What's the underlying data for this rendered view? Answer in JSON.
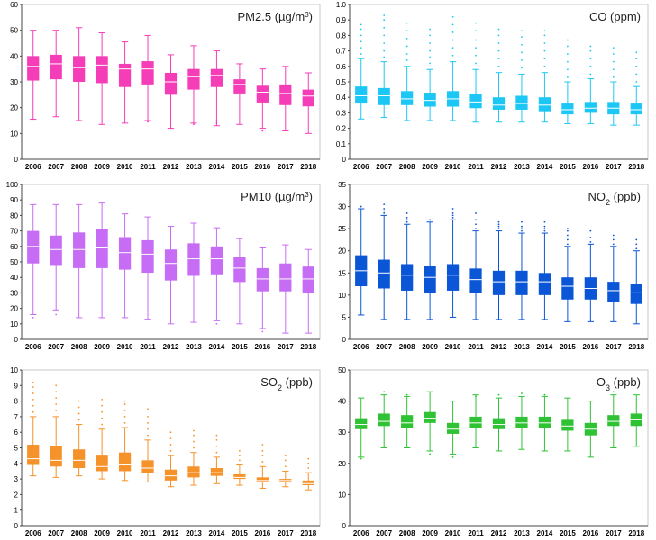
{
  "chart_data": [
    {
      "type": "boxplot",
      "title": "PM2.5 (µg/m³)",
      "title_main": "PM2.5 (µg/m",
      "title_sup": "3",
      "title_end": ")",
      "color": "#f53db8",
      "categories": [
        "2006",
        "2007",
        "2008",
        "2009",
        "2010",
        "2011",
        "2012",
        "2013",
        "2014",
        "2015",
        "2016",
        "2017",
        "2018"
      ],
      "ylim": [
        0,
        60
      ],
      "yticks": [
        "0",
        "10",
        "20",
        "30",
        "40",
        "50",
        "60"
      ],
      "boxes": [
        {
          "low": 15.5,
          "q1": 30.5,
          "median": 36,
          "q3": 40,
          "high": 50,
          "outliers": []
        },
        {
          "low": 16.5,
          "q1": 31,
          "median": 37,
          "q3": 40.5,
          "high": 50,
          "outliers": []
        },
        {
          "low": 15,
          "q1": 30,
          "median": 35.5,
          "q3": 40,
          "high": 51,
          "outliers": []
        },
        {
          "low": 13.5,
          "q1": 29.5,
          "median": 36.5,
          "q3": 40,
          "high": 49,
          "outliers": []
        },
        {
          "low": 14,
          "q1": 28,
          "median": 35,
          "q3": 37,
          "high": 45.5,
          "outliers": []
        },
        {
          "low": 15,
          "q1": 29,
          "median": 35,
          "q3": 38,
          "high": 48,
          "outliers": [
            14.5
          ]
        },
        {
          "low": 12,
          "q1": 25,
          "median": 30,
          "q3": 33.5,
          "high": 40.5,
          "outliers": []
        },
        {
          "low": 14,
          "q1": 27,
          "median": 32,
          "q3": 35,
          "high": 44,
          "outliers": [
            13.5
          ]
        },
        {
          "low": 13,
          "q1": 28,
          "median": 32.5,
          "q3": 35,
          "high": 42,
          "outliers": [
            15,
            14
          ]
        },
        {
          "low": 13.5,
          "q1": 25.5,
          "median": 29,
          "q3": 31,
          "high": 37,
          "outliers": []
        },
        {
          "low": 12,
          "q1": 22,
          "median": 26,
          "q3": 28.5,
          "high": 35,
          "outliers": [
            11
          ]
        },
        {
          "low": 11,
          "q1": 21,
          "median": 25.5,
          "q3": 29,
          "high": 36,
          "outliers": []
        },
        {
          "low": 10,
          "q1": 20.5,
          "median": 24.5,
          "q3": 27,
          "high": 33.5,
          "outliers": []
        }
      ]
    },
    {
      "type": "boxplot",
      "title": "CO (ppm)",
      "title_main": "CO (ppm)",
      "title_sup": "",
      "title_end": "",
      "color": "#1cc7f5",
      "categories": [
        "2006",
        "2007",
        "2008",
        "2009",
        "2010",
        "2011",
        "2012",
        "2013",
        "2014",
        "2015",
        "2016",
        "2017",
        "2018"
      ],
      "ylim": [
        0,
        1
      ],
      "yticks": [
        "0",
        "0.1",
        "0.2",
        "0.3",
        "0.4",
        "0.5",
        "0.6",
        "0.7",
        "0.8",
        "0.9",
        "1.0"
      ],
      "boxes": [
        {
          "low": 0.26,
          "q1": 0.36,
          "median": 0.41,
          "q3": 0.47,
          "high": 0.65,
          "outliers": [
            0.68,
            0.72,
            0.76,
            0.8,
            0.84,
            0.87
          ]
        },
        {
          "low": 0.27,
          "q1": 0.35,
          "median": 0.41,
          "q3": 0.46,
          "high": 0.63,
          "outliers": [
            0.66,
            0.7,
            0.75,
            0.8,
            0.85,
            0.9,
            0.93
          ]
        },
        {
          "low": 0.25,
          "q1": 0.35,
          "median": 0.39,
          "q3": 0.44,
          "high": 0.6,
          "outliers": [
            0.64,
            0.68,
            0.73,
            0.78,
            0.83,
            0.88
          ]
        },
        {
          "low": 0.25,
          "q1": 0.34,
          "median": 0.38,
          "q3": 0.43,
          "high": 0.58,
          "outliers": [
            0.62,
            0.66,
            0.7,
            0.75,
            0.8,
            0.84
          ]
        },
        {
          "low": 0.25,
          "q1": 0.34,
          "median": 0.39,
          "q3": 0.44,
          "high": 0.63,
          "outliers": [
            0.67,
            0.72,
            0.77,
            0.82,
            0.87,
            0.92
          ]
        },
        {
          "low": 0.24,
          "q1": 0.33,
          "median": 0.37,
          "q3": 0.42,
          "high": 0.58,
          "outliers": [
            0.62,
            0.67,
            0.72,
            0.77,
            0.83,
            0.88
          ]
        },
        {
          "low": 0.24,
          "q1": 0.32,
          "median": 0.35,
          "q3": 0.4,
          "high": 0.56,
          "outliers": [
            0.6,
            0.65,
            0.7,
            0.75,
            0.8,
            0.84
          ]
        },
        {
          "low": 0.24,
          "q1": 0.32,
          "median": 0.36,
          "q3": 0.41,
          "high": 0.55,
          "outliers": [
            0.59,
            0.64,
            0.69,
            0.74,
            0.79,
            0.83
          ]
        },
        {
          "low": 0.24,
          "q1": 0.31,
          "median": 0.35,
          "q3": 0.4,
          "high": 0.56,
          "outliers": [
            0.6,
            0.65,
            0.7,
            0.75,
            0.8,
            0.83
          ]
        },
        {
          "low": 0.23,
          "q1": 0.29,
          "median": 0.32,
          "q3": 0.36,
          "high": 0.5,
          "outliers": [
            0.53,
            0.58,
            0.63,
            0.68,
            0.73,
            0.77
          ]
        },
        {
          "low": 0.23,
          "q1": 0.3,
          "median": 0.33,
          "q3": 0.37,
          "high": 0.52,
          "outliers": [
            0.55,
            0.6,
            0.65,
            0.7,
            0.73
          ]
        },
        {
          "low": 0.22,
          "q1": 0.29,
          "median": 0.33,
          "q3": 0.37,
          "high": 0.5,
          "outliers": [
            0.53,
            0.58,
            0.63,
            0.68,
            0.72
          ]
        },
        {
          "low": 0.22,
          "q1": 0.29,
          "median": 0.32,
          "q3": 0.36,
          "high": 0.47,
          "outliers": [
            0.5,
            0.55,
            0.6,
            0.65,
            0.69
          ]
        }
      ]
    },
    {
      "type": "boxplot",
      "title": "PM10 (µg/m³)",
      "title_main": "PM10 (µg/m",
      "title_sup": "3",
      "title_end": ")",
      "color": "#c66cf5",
      "categories": [
        "2006",
        "2007",
        "2008",
        "2009",
        "2010",
        "2011",
        "2012",
        "2013",
        "2014",
        "2015",
        "2016",
        "2017",
        "2018"
      ],
      "ylim": [
        0,
        100
      ],
      "yticks": [
        "0",
        "10",
        "20",
        "30",
        "40",
        "50",
        "60",
        "70",
        "80",
        "90",
        "100"
      ],
      "boxes": [
        {
          "low": 16,
          "q1": 49,
          "median": 60,
          "q3": 70,
          "high": 87,
          "outliers": [
            14
          ]
        },
        {
          "low": 19,
          "q1": 48,
          "median": 58,
          "q3": 67,
          "high": 87,
          "outliers": [
            16
          ]
        },
        {
          "low": 14,
          "q1": 46,
          "median": 58,
          "q3": 69,
          "high": 87,
          "outliers": []
        },
        {
          "low": 14,
          "q1": 46,
          "median": 59,
          "q3": 71,
          "high": 88,
          "outliers": []
        },
        {
          "low": 14,
          "q1": 45,
          "median": 56,
          "q3": 66,
          "high": 81,
          "outliers": []
        },
        {
          "low": 13,
          "q1": 43,
          "median": 55,
          "q3": 64,
          "high": 79,
          "outliers": []
        },
        {
          "low": 10,
          "q1": 38,
          "median": 49,
          "q3": 58,
          "high": 73,
          "outliers": []
        },
        {
          "low": 11,
          "q1": 41,
          "median": 52,
          "q3": 62,
          "high": 75,
          "outliers": []
        },
        {
          "low": 12,
          "q1": 42,
          "median": 52,
          "q3": 60,
          "high": 72,
          "outliers": [
            10
          ]
        },
        {
          "low": 10,
          "q1": 37,
          "median": 46,
          "q3": 53,
          "high": 65,
          "outliers": []
        },
        {
          "low": 7,
          "q1": 31,
          "median": 39,
          "q3": 46,
          "high": 59,
          "outliers": [
            5
          ]
        },
        {
          "low": 4,
          "q1": 31,
          "median": 39,
          "q3": 49,
          "high": 61,
          "outliers": []
        },
        {
          "low": 4,
          "q1": 30,
          "median": 39,
          "q3": 47,
          "high": 58,
          "outliers": []
        }
      ]
    },
    {
      "type": "boxplot",
      "title": "NO₂ (ppb)",
      "title_main": "NO",
      "title_sub": "2",
      "title_end": " (ppb)",
      "color": "#0a56d6",
      "categories": [
        "2006",
        "2007",
        "2008",
        "2009",
        "2010",
        "2011",
        "2012",
        "2013",
        "2014",
        "2015",
        "2016",
        "2017",
        "2018"
      ],
      "ylim": [
        0,
        35
      ],
      "yticks": [
        "0",
        "5",
        "10",
        "15",
        "20",
        "25",
        "30",
        "35"
      ],
      "boxes": [
        {
          "low": 5.5,
          "q1": 12,
          "median": 15.5,
          "q3": 19,
          "high": 29.5,
          "outliers": [
            30
          ]
        },
        {
          "low": 4.5,
          "q1": 11.5,
          "median": 15,
          "q3": 18,
          "high": 28,
          "outliers": [
            28.5,
            29,
            29.5,
            30.5
          ]
        },
        {
          "low": 4.5,
          "q1": 11,
          "median": 14.5,
          "q3": 17,
          "high": 26,
          "outliers": [
            26.5,
            27,
            27.5,
            28.5
          ]
        },
        {
          "low": 4.5,
          "q1": 10.5,
          "median": 14,
          "q3": 16.5,
          "high": 26.5,
          "outliers": [
            27
          ]
        },
        {
          "low": 5,
          "q1": 11,
          "median": 14.5,
          "q3": 17,
          "high": 27,
          "outliers": [
            27.5,
            28,
            28.5,
            29.5
          ]
        },
        {
          "low": 4.5,
          "q1": 10.5,
          "median": 13.5,
          "q3": 16,
          "high": 24.5,
          "outliers": [
            25,
            26,
            27,
            28.5
          ]
        },
        {
          "low": 4.5,
          "q1": 10,
          "median": 13,
          "q3": 15.5,
          "high": 24.5,
          "outliers": [
            25,
            25.5,
            26,
            26.5
          ]
        },
        {
          "low": 4.5,
          "q1": 10,
          "median": 13,
          "q3": 15.5,
          "high": 24,
          "outliers": [
            24.5,
            25,
            25.5,
            26.5
          ]
        },
        {
          "low": 4.5,
          "q1": 10,
          "median": 13,
          "q3": 15,
          "high": 24,
          "outliers": [
            24.5,
            25,
            25.5,
            26.5
          ]
        },
        {
          "low": 4,
          "q1": 9,
          "median": 12,
          "q3": 14,
          "high": 21,
          "outliers": [
            21.5,
            22.5,
            23.5,
            24.5,
            25
          ]
        },
        {
          "low": 4,
          "q1": 9,
          "median": 11.5,
          "q3": 14,
          "high": 21.5,
          "outliers": [
            22,
            23,
            24.5
          ]
        },
        {
          "low": 4,
          "q1": 8.5,
          "median": 11,
          "q3": 13,
          "high": 21,
          "outliers": [
            21.5,
            22.5,
            23.5
          ]
        },
        {
          "low": 3.5,
          "q1": 8,
          "median": 10.5,
          "q3": 12.5,
          "high": 20,
          "outliers": [
            20.5,
            21.5,
            22.5
          ]
        }
      ]
    },
    {
      "type": "boxplot",
      "title": "SO₂ (ppb)",
      "title_main": "SO",
      "title_sub": "2",
      "title_end": " (ppb)",
      "color": "#f5922a",
      "categories": [
        "2006",
        "2007",
        "2008",
        "2009",
        "2010",
        "2011",
        "2012",
        "2013",
        "2014",
        "2015",
        "2016",
        "2017",
        "2018"
      ],
      "ylim": [
        0,
        10
      ],
      "yticks": [
        "0",
        "1",
        "2",
        "3",
        "4",
        "5",
        "6",
        "7",
        "8",
        "9",
        "10"
      ],
      "boxes": [
        {
          "low": 3.2,
          "q1": 3.9,
          "median": 4.3,
          "q3": 5.2,
          "high": 7.0,
          "outliers": [
            7.3,
            7.7,
            8.1,
            8.5,
            8.9,
            9.2
          ]
        },
        {
          "low": 3.1,
          "q1": 3.8,
          "median": 4.2,
          "q3": 5.1,
          "high": 7.0,
          "outliers": [
            7.4,
            7.8,
            8.2,
            8.6,
            9.0
          ]
        },
        {
          "low": 3.2,
          "q1": 3.7,
          "median": 4.2,
          "q3": 4.9,
          "high": 6.5,
          "outliers": [
            6.8,
            7.2,
            7.6,
            8.0
          ]
        },
        {
          "low": 3.0,
          "q1": 3.5,
          "median": 3.8,
          "q3": 4.5,
          "high": 6.2,
          "outliers": [
            6.5,
            6.9,
            7.3,
            7.7,
            8.1
          ]
        },
        {
          "low": 2.9,
          "q1": 3.5,
          "median": 3.9,
          "q3": 4.7,
          "high": 6.3,
          "outliers": [
            6.6,
            7.0,
            7.4,
            7.8,
            8.0
          ]
        },
        {
          "low": 2.8,
          "q1": 3.4,
          "median": 3.7,
          "q3": 4.2,
          "high": 5.5,
          "outliers": [
            5.8,
            6.2,
            6.6,
            7.0,
            7.5
          ]
        },
        {
          "low": 2.5,
          "q1": 2.9,
          "median": 3.2,
          "q3": 3.6,
          "high": 4.5,
          "outliers": [
            4.8,
            5.2,
            5.6,
            6.0
          ]
        },
        {
          "low": 2.6,
          "q1": 3.1,
          "median": 3.4,
          "q3": 3.8,
          "high": 4.7,
          "outliers": [
            5.0,
            5.4,
            5.8,
            6.1
          ]
        },
        {
          "low": 2.7,
          "q1": 3.2,
          "median": 3.4,
          "q3": 3.7,
          "high": 4.4,
          "outliers": [
            4.7,
            5.1,
            5.5,
            5.8
          ]
        },
        {
          "low": 2.6,
          "q1": 3.0,
          "median": 3.1,
          "q3": 3.3,
          "high": 3.9,
          "outliers": [
            4.2,
            4.5,
            4.8
          ]
        },
        {
          "low": 2.4,
          "q1": 2.8,
          "median": 2.9,
          "q3": 3.1,
          "high": 3.8,
          "outliers": [
            4.1,
            4.5,
            4.8,
            5.2
          ]
        },
        {
          "low": 2.5,
          "q1": 2.8,
          "median": 2.9,
          "q3": 3.0,
          "high": 3.5,
          "outliers": [
            3.8,
            4.2,
            4.5
          ]
        },
        {
          "low": 2.3,
          "q1": 2.6,
          "median": 2.7,
          "q3": 2.9,
          "high": 3.4,
          "outliers": [
            3.7,
            4.0,
            4.3
          ]
        }
      ]
    },
    {
      "type": "boxplot",
      "title": "O₃ (ppb)",
      "title_main": "O",
      "title_sub": "3",
      "title_end": " (ppb)",
      "color": "#2fc234",
      "categories": [
        "2006",
        "2007",
        "2008",
        "2009",
        "2010",
        "2011",
        "2012",
        "2013",
        "2014",
        "2015",
        "2016",
        "2017",
        "2018"
      ],
      "ylim": [
        0,
        50
      ],
      "yticks": [
        "0",
        "10",
        "20",
        "30",
        "40",
        "50"
      ],
      "boxes": [
        {
          "low": 22,
          "q1": 31,
          "median": 32.5,
          "q3": 34.5,
          "high": 41,
          "outliers": [
            21.5
          ]
        },
        {
          "low": 25,
          "q1": 32,
          "median": 33.5,
          "q3": 36,
          "high": 42,
          "outliers": [
            43
          ]
        },
        {
          "low": 25,
          "q1": 31.5,
          "median": 33,
          "q3": 35.5,
          "high": 41.5,
          "outliers": [
            42
          ]
        },
        {
          "low": 24,
          "q1": 33,
          "median": 34.5,
          "q3": 36.5,
          "high": 43,
          "outliers": [
            23
          ]
        },
        {
          "low": 23,
          "q1": 29.5,
          "median": 31,
          "q3": 33,
          "high": 40,
          "outliers": [
            22
          ]
        },
        {
          "low": 25,
          "q1": 31.5,
          "median": 33,
          "q3": 35,
          "high": 42,
          "outliers": [
            41.5
          ]
        },
        {
          "low": 24,
          "q1": 31,
          "median": 32.5,
          "q3": 34.5,
          "high": 41,
          "outliers": [
            42
          ]
        },
        {
          "low": 24.5,
          "q1": 31.5,
          "median": 33,
          "q3": 35,
          "high": 41.5,
          "outliers": [
            42.5
          ]
        },
        {
          "low": 24,
          "q1": 31.5,
          "median": 33,
          "q3": 35,
          "high": 41.5,
          "outliers": [
            42
          ]
        },
        {
          "low": 24,
          "q1": 30.5,
          "median": 32,
          "q3": 34,
          "high": 41,
          "outliers": []
        },
        {
          "low": 22,
          "q1": 29,
          "median": 31,
          "q3": 33,
          "high": 40,
          "outliers": []
        },
        {
          "low": 25,
          "q1": 32,
          "median": 33.5,
          "q3": 35.5,
          "high": 42,
          "outliers": [
            43
          ]
        },
        {
          "low": 25.5,
          "q1": 32,
          "median": 34,
          "q3": 36,
          "high": 42,
          "outliers": []
        }
      ]
    }
  ]
}
